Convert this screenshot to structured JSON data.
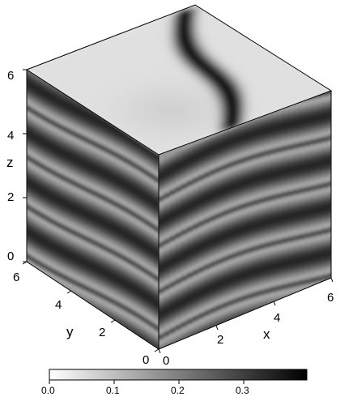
{
  "axes": {
    "x": {
      "label": "x",
      "ticks": [
        "0",
        "2",
        "4",
        "6"
      ]
    },
    "y": {
      "label": "y",
      "ticks": [
        "0",
        "2",
        "4",
        "6"
      ]
    },
    "z": {
      "label": "z",
      "ticks": [
        "0",
        "2",
        "4",
        "6"
      ]
    }
  },
  "colorbar": {
    "ticks": [
      "0.0",
      "0.1",
      "0.2",
      "0.3"
    ],
    "colormap": [
      "#ffffff",
      "#000000"
    ]
  }
}
